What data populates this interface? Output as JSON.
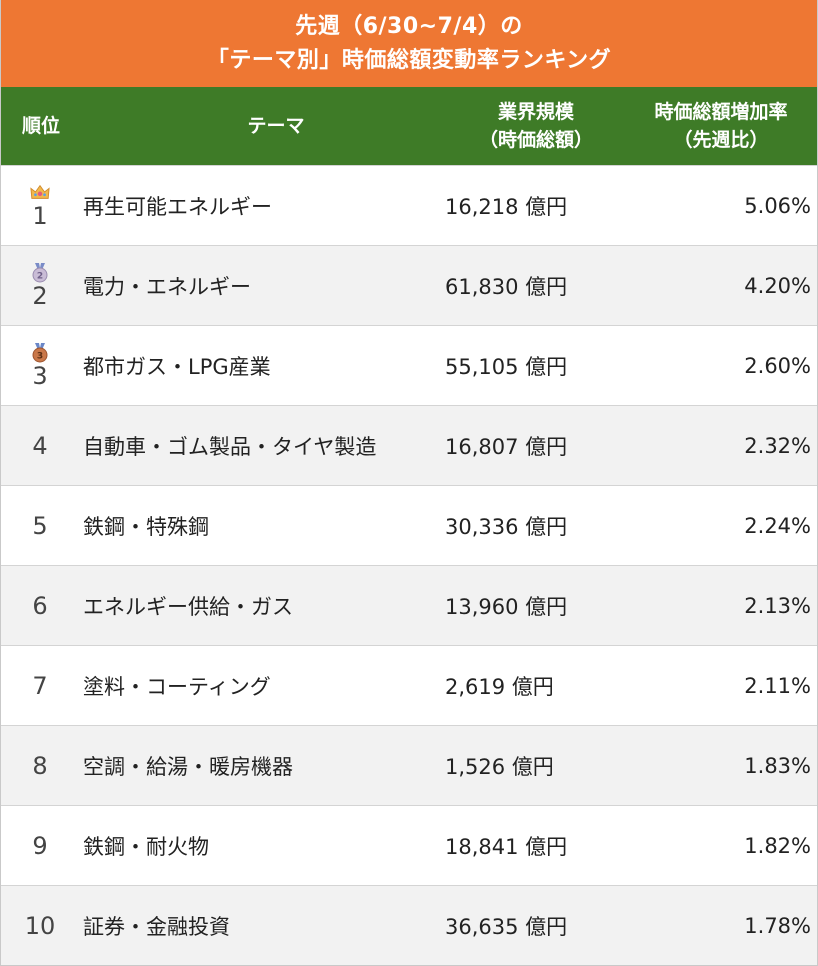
{
  "title": {
    "line1": "先週（6/30~7/4）の",
    "line2": "「テーマ別」時価総額変動率ランキング"
  },
  "header": {
    "rank": "順位",
    "theme": "テーマ",
    "size_line1": "業界規模",
    "size_line2": "（時価総額）",
    "rate_line1": "時価総額増加率",
    "rate_line2": "（先週比）"
  },
  "rows": [
    {
      "rank": "1",
      "medal": "crown-icon",
      "theme": "再生可能エネルギー",
      "size": "16,218 億円",
      "rate": "5.06%"
    },
    {
      "rank": "2",
      "medal": "silver-medal-icon",
      "theme": "電力・エネルギー",
      "size": "61,830 億円",
      "rate": "4.20%"
    },
    {
      "rank": "3",
      "medal": "bronze-medal-icon",
      "theme": "都市ガス・LPG産業",
      "size": "55,105 億円",
      "rate": "2.60%"
    },
    {
      "rank": "4",
      "theme": "自動車・ゴム製品・タイヤ製造",
      "size": "16,807 億円",
      "rate": "2.32%"
    },
    {
      "rank": "5",
      "theme": "鉄鋼・特殊鋼",
      "size": "30,336 億円",
      "rate": "2.24%"
    },
    {
      "rank": "6",
      "theme": "エネルギー供給・ガス",
      "size": "13,960 億円",
      "rate": "2.13%"
    },
    {
      "rank": "7",
      "theme": "塗料・コーティング",
      "size": "2,619 億円",
      "rate": "2.11%"
    },
    {
      "rank": "8",
      "theme": "空調・給湯・暖房機器",
      "size": "1,526 億円",
      "rate": "1.83%"
    },
    {
      "rank": "9",
      "theme": "鉄鋼・耐火物",
      "size": "18,841 億円",
      "rate": "1.82%"
    },
    {
      "rank": "10",
      "theme": "証券・金融投資",
      "size": "36,635 億円",
      "rate": "1.78%"
    }
  ],
  "colors": {
    "title_bg": "#ee7733",
    "header_bg": "#3e7b27",
    "alt_row_bg": "#f2f2f2"
  }
}
